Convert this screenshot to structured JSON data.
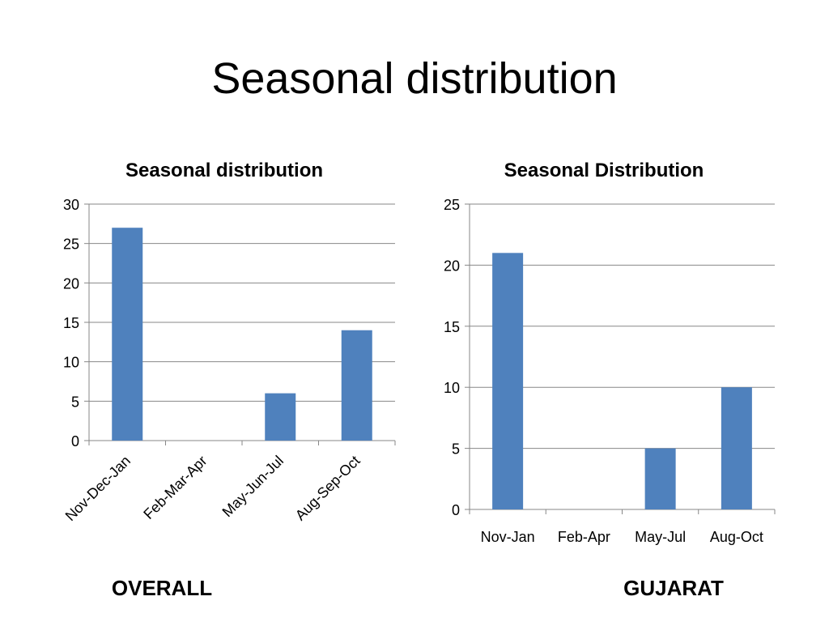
{
  "slide": {
    "title": "Seasonal distribution"
  },
  "captions": {
    "left": "OVERALL",
    "right": "GUJARAT"
  },
  "colors": {
    "bar": "#4F81BD",
    "grid": "#878787",
    "axis": "#878787"
  },
  "chart_data": [
    {
      "type": "bar",
      "title": "Seasonal distribution",
      "categories": [
        "Nov-Dec-Jan",
        "Feb-Mar-Apr",
        "May-Jun-Jul",
        "Aug-Sep-Oct"
      ],
      "values": [
        27,
        0,
        6,
        14
      ],
      "xlabel": "",
      "ylabel": "",
      "ylim": [
        0,
        30
      ],
      "yticks": [
        0,
        5,
        10,
        15,
        20,
        25,
        30
      ],
      "grid": true,
      "legend": "none"
    },
    {
      "type": "bar",
      "title": "Seasonal Distribution",
      "categories": [
        "Nov-Jan",
        "Feb-Apr",
        "May-Jul",
        "Aug-Oct"
      ],
      "values": [
        21,
        0,
        5,
        10
      ],
      "xlabel": "",
      "ylabel": "",
      "ylim": [
        0,
        25
      ],
      "yticks": [
        0,
        5,
        10,
        15,
        20,
        25
      ],
      "grid": true,
      "legend": "none"
    }
  ]
}
